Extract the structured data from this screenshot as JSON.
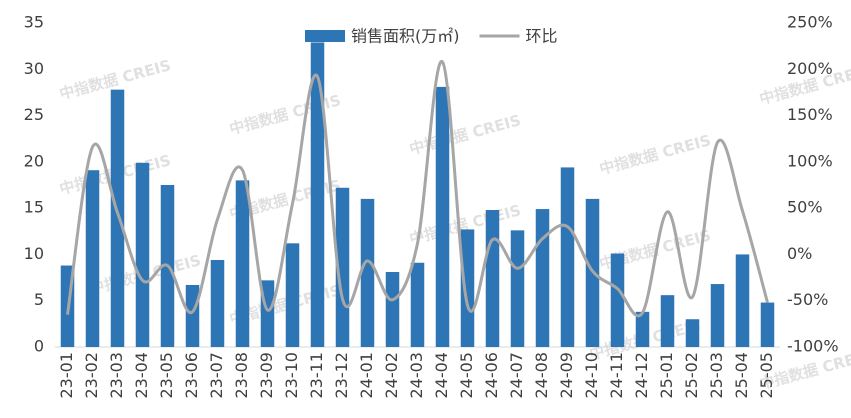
{
  "chart_data": {
    "type": "bar-line",
    "watermark": "中指数据 CREIS",
    "categories": [
      "23-01",
      "23-02",
      "23-03",
      "23-04",
      "23-05",
      "23-06",
      "23-07",
      "23-08",
      "23-09",
      "23-10",
      "23-11",
      "23-12",
      "24-01",
      "24-02",
      "24-03",
      "24-04",
      "24-05",
      "24-06",
      "24-07",
      "24-08",
      "24-09",
      "24-10",
      "24-11",
      "24-12",
      "25-01",
      "25-02",
      "25-03",
      "25-04",
      "25-05"
    ],
    "series": [
      {
        "name": "销售面积(万㎡)",
        "type": "bar",
        "color": "#2e75b6",
        "values": [
          8.8,
          19.1,
          27.8,
          19.9,
          17.5,
          6.7,
          9.4,
          18.0,
          7.2,
          11.2,
          32.9,
          17.2,
          16.0,
          8.1,
          9.1,
          28.1,
          12.7,
          14.8,
          12.6,
          14.9,
          19.4,
          16.0,
          10.1,
          3.8,
          5.6,
          3.0,
          6.8,
          10.0,
          4.8
        ]
      },
      {
        "name": "环比",
        "type": "line",
        "axis": "y2",
        "color": "#a6a6a6",
        "values": [
          -65,
          116,
          45,
          -28,
          -12,
          -62,
          38,
          91,
          -60,
          55,
          192,
          -48,
          -7,
          -49,
          12,
          208,
          -55,
          16,
          -15,
          17,
          30,
          -18,
          -37,
          -63,
          46,
          -46,
          121,
          47,
          -52
        ]
      }
    ],
    "ylim": [
      0,
      35
    ],
    "yticks": [
      0,
      5,
      10,
      15,
      20,
      25,
      30,
      35
    ],
    "y2lim": [
      -100,
      250
    ],
    "y2ticks": [
      {
        "value": -100,
        "label": "-100%"
      },
      {
        "value": -50,
        "label": "-50%"
      },
      {
        "value": 0,
        "label": "0%"
      },
      {
        "value": 50,
        "label": "50%"
      },
      {
        "value": 100,
        "label": "100%"
      },
      {
        "value": 150,
        "label": "150%"
      },
      {
        "value": 200,
        "label": "200%"
      },
      {
        "value": 250,
        "label": "250%"
      }
    ],
    "legend": "top"
  }
}
